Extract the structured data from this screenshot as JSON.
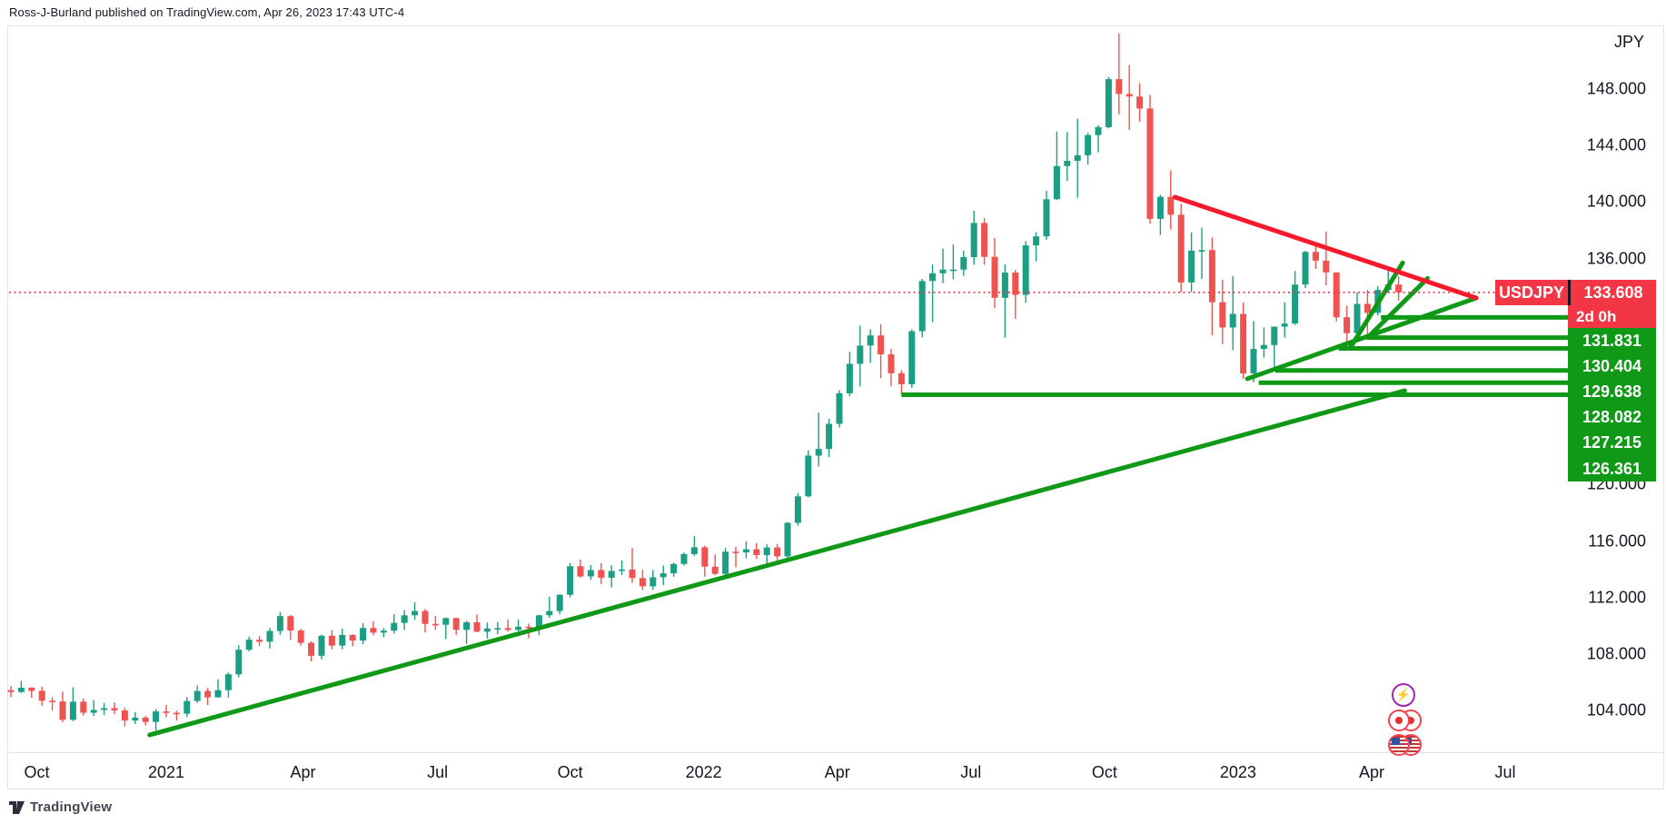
{
  "attribution": "Ross-J-Burland published on TradingView.com, Apr 26, 2023 17:43 UTC-4",
  "footer": {
    "logo_text": "TradingView"
  },
  "ticker": {
    "symbol": "USDJPY",
    "last_price": "133.608",
    "countdown": "2d 0h"
  },
  "colors": {
    "candle_up": "#1b9e83",
    "candle_down": "#ef5350",
    "line_green": "#0f9917",
    "line_red": "#f5192c",
    "badge_red": "#f23645",
    "badge_green": "#0f9917",
    "dotted_price_line": "#f23645",
    "axis_text": "#131722"
  },
  "price_axis": {
    "title": "JPY",
    "ticks": [
      {
        "label": "148.000",
        "price": 148
      },
      {
        "label": "144.000",
        "price": 144
      },
      {
        "label": "140.000",
        "price": 140
      },
      {
        "label": "136.000",
        "price": 136
      },
      {
        "label": "120.000",
        "price": 120
      },
      {
        "label": "116.000",
        "price": 116
      },
      {
        "label": "112.000",
        "price": 112
      },
      {
        "label": "108.000",
        "price": 108
      },
      {
        "label": "104.000",
        "price": 104
      }
    ]
  },
  "time_axis": {
    "ticks": [
      {
        "label": "Oct",
        "index": 2.5
      },
      {
        "label": "2021",
        "index": 15.0
      },
      {
        "label": "Apr",
        "index": 28.2
      },
      {
        "label": "Jul",
        "index": 41.2
      },
      {
        "label": "Oct",
        "index": 54.0
      },
      {
        "label": "2022",
        "index": 66.9
      },
      {
        "label": "Apr",
        "index": 79.8
      },
      {
        "label": "Jul",
        "index": 92.7
      },
      {
        "label": "Oct",
        "index": 105.6
      },
      {
        "label": "2023",
        "index": 118.5
      },
      {
        "label": "Apr",
        "index": 131.4
      },
      {
        "label": "Jul",
        "index": 144.3
      }
    ]
  },
  "levels": [
    {
      "label": "131.831",
      "price": 131.831,
      "start_index": 132.3
    },
    {
      "label": "130.404",
      "price": 130.404,
      "start_index": 131.0
    },
    {
      "label": "129.638",
      "price": 129.638,
      "start_index": 128.2
    },
    {
      "label": "128.082",
      "price": 128.082,
      "start_index": 122.1
    },
    {
      "label": "127.215",
      "price": 127.215,
      "start_index": 120.5
    },
    {
      "label": "126.361",
      "price": 126.361,
      "start_index": 86.0
    }
  ],
  "trendlines": [
    {
      "name": "long-term-uptrend",
      "color": "green",
      "i1": 13.4,
      "p1": 102.28,
      "i2": 134.6,
      "p2": 126.65
    },
    {
      "name": "pennant-support",
      "color": "green",
      "i1": 119.4,
      "p1": 127.49,
      "i2": 141.5,
      "p2": 133.21
    },
    {
      "name": "wedge-support-steep",
      "color": "green",
      "i1": 129.3,
      "p1": 129.64,
      "i2": 134.4,
      "p2": 135.7
    },
    {
      "name": "wedge-inner-steep",
      "color": "green",
      "i1": 131.0,
      "p1": 130.4,
      "i2": 136.8,
      "p2": 134.6
    },
    {
      "name": "pennant-resistance",
      "color": "red",
      "i1": 112.4,
      "p1": 140.35,
      "i2": 141.5,
      "p2": 133.21
    }
  ],
  "chart_data": {
    "type": "candlestick",
    "symbol": "USDJPY",
    "timeframe": "1W",
    "current_price": 133.608,
    "axis": {
      "price_min_visible": 102,
      "price_max_visible": 152
    },
    "weeks": [
      [
        "2020-09-28",
        105.45,
        105.75,
        104.95,
        105.32
      ],
      [
        "2020-10-05",
        105.32,
        106.1,
        105.25,
        105.62
      ],
      [
        "2020-10-12",
        105.62,
        105.65,
        104.9,
        105.4
      ],
      [
        "2020-10-19",
        105.4,
        105.7,
        104.35,
        104.7
      ],
      [
        "2020-10-26",
        104.7,
        104.95,
        104.0,
        104.65
      ],
      [
        "2020-11-02",
        104.65,
        105.35,
        103.18,
        103.35
      ],
      [
        "2020-11-09",
        103.35,
        105.65,
        103.25,
        104.63
      ],
      [
        "2020-11-16",
        104.63,
        104.85,
        103.65,
        103.85
      ],
      [
        "2020-11-23",
        103.85,
        104.75,
        103.62,
        104.05
      ],
      [
        "2020-11-30",
        104.05,
        104.55,
        103.68,
        104.17
      ],
      [
        "2020-12-07",
        104.17,
        104.58,
        103.75,
        104.02
      ],
      [
        "2020-12-14",
        104.02,
        104.2,
        102.88,
        103.3
      ],
      [
        "2020-12-21",
        103.3,
        103.9,
        103.05,
        103.5
      ],
      [
        "2020-12-28",
        103.5,
        103.62,
        102.95,
        103.2
      ],
      [
        "2021-01-04",
        103.2,
        104.1,
        102.59,
        103.94
      ],
      [
        "2021-01-11",
        103.94,
        104.4,
        103.52,
        103.85
      ],
      [
        "2021-01-18",
        103.85,
        104.0,
        103.3,
        103.78
      ],
      [
        "2021-01-25",
        103.78,
        104.95,
        103.55,
        104.68
      ],
      [
        "2021-02-01",
        104.68,
        105.77,
        104.55,
        105.39
      ],
      [
        "2021-02-08",
        105.39,
        105.6,
        104.4,
        104.94
      ],
      [
        "2021-02-15",
        104.94,
        106.22,
        104.92,
        105.45
      ],
      [
        "2021-02-22",
        105.45,
        106.7,
        104.92,
        106.57
      ],
      [
        "2021-03-01",
        106.57,
        108.63,
        106.36,
        108.31
      ],
      [
        "2021-03-08",
        108.31,
        109.23,
        108.2,
        109.02
      ],
      [
        "2021-03-15",
        109.02,
        109.29,
        108.58,
        108.88
      ],
      [
        "2021-03-22",
        108.88,
        109.85,
        108.4,
        109.64
      ],
      [
        "2021-03-29",
        109.64,
        110.97,
        109.36,
        110.69
      ],
      [
        "2021-04-05",
        110.69,
        110.77,
        109.0,
        109.67
      ],
      [
        "2021-04-12",
        109.67,
        109.8,
        108.6,
        108.8
      ],
      [
        "2021-04-19",
        108.8,
        108.9,
        107.48,
        107.88
      ],
      [
        "2021-04-26",
        107.88,
        109.39,
        107.64,
        109.3
      ],
      [
        "2021-05-03",
        109.3,
        109.7,
        108.34,
        108.6
      ],
      [
        "2021-05-10",
        108.6,
        109.79,
        108.35,
        109.35
      ],
      [
        "2021-05-17",
        109.35,
        109.4,
        108.56,
        108.96
      ],
      [
        "2021-05-24",
        108.96,
        110.2,
        108.7,
        109.85
      ],
      [
        "2021-05-31",
        109.85,
        110.33,
        109.33,
        109.52
      ],
      [
        "2021-06-07",
        109.52,
        109.84,
        109.19,
        109.66
      ],
      [
        "2021-06-14",
        109.66,
        110.82,
        109.45,
        110.21
      ],
      [
        "2021-06-21",
        110.21,
        111.11,
        109.72,
        110.75
      ],
      [
        "2021-06-28",
        110.75,
        111.66,
        110.42,
        111.05
      ],
      [
        "2021-07-05",
        111.05,
        111.19,
        109.53,
        110.14
      ],
      [
        "2021-07-12",
        110.14,
        110.7,
        109.72,
        110.08
      ],
      [
        "2021-07-19",
        110.08,
        110.59,
        109.07,
        110.55
      ],
      [
        "2021-07-26",
        110.55,
        110.58,
        109.36,
        109.72
      ],
      [
        "2021-08-02",
        109.72,
        110.36,
        108.72,
        110.25
      ],
      [
        "2021-08-09",
        110.25,
        110.8,
        109.54,
        109.59
      ],
      [
        "2021-08-16",
        109.59,
        110.23,
        109.11,
        109.81
      ],
      [
        "2021-08-23",
        109.81,
        110.26,
        109.41,
        109.84
      ],
      [
        "2021-08-30",
        109.84,
        110.44,
        109.59,
        109.71
      ],
      [
        "2021-09-06",
        109.71,
        110.45,
        109.62,
        109.94
      ],
      [
        "2021-09-13",
        109.94,
        110.15,
        109.11,
        109.93
      ],
      [
        "2021-09-20",
        109.93,
        110.79,
        109.33,
        110.75
      ],
      [
        "2021-09-27",
        110.75,
        112.07,
        110.56,
        111.05
      ],
      [
        "2021-10-04",
        111.05,
        112.24,
        110.82,
        112.2
      ],
      [
        "2021-10-11",
        112.2,
        114.46,
        112.02,
        114.22
      ],
      [
        "2021-10-18",
        114.22,
        114.69,
        113.4,
        113.5
      ],
      [
        "2021-10-25",
        113.5,
        114.3,
        113.26,
        113.95
      ],
      [
        "2021-11-01",
        113.95,
        114.44,
        112.96,
        113.41
      ],
      [
        "2021-11-08",
        113.41,
        114.29,
        112.73,
        113.89
      ],
      [
        "2021-11-15",
        113.89,
        114.63,
        113.6,
        113.99
      ],
      [
        "2021-11-22",
        113.99,
        115.52,
        113.05,
        113.38
      ],
      [
        "2021-11-29",
        113.38,
        113.96,
        112.53,
        112.8
      ],
      [
        "2021-12-06",
        112.8,
        113.95,
        112.56,
        113.44
      ],
      [
        "2021-12-13",
        113.44,
        114.27,
        112.87,
        113.72
      ],
      [
        "2021-12-20",
        113.72,
        114.47,
        113.47,
        114.38
      ],
      [
        "2021-12-27",
        114.38,
        115.2,
        114.27,
        115.08
      ],
      [
        "2022-01-03",
        115.08,
        116.35,
        114.95,
        115.56
      ],
      [
        "2022-01-10",
        115.56,
        115.68,
        113.48,
        114.19
      ],
      [
        "2022-01-17",
        114.19,
        115.06,
        113.59,
        113.68
      ],
      [
        "2022-01-24",
        113.68,
        115.52,
        113.46,
        115.25
      ],
      [
        "2022-01-31",
        115.25,
        115.6,
        114.15,
        115.2
      ],
      [
        "2022-02-07",
        115.2,
        116.0,
        114.78,
        115.42
      ],
      [
        "2022-02-14",
        115.42,
        115.86,
        114.74,
        115.01
      ],
      [
        "2022-02-21",
        115.01,
        115.77,
        114.4,
        115.55
      ],
      [
        "2022-02-28",
        115.55,
        115.8,
        114.64,
        114.92
      ],
      [
        "2022-03-07",
        114.92,
        117.36,
        114.81,
        117.29
      ],
      [
        "2022-03-14",
        117.29,
        119.4,
        117.1,
        119.17
      ],
      [
        "2022-03-21",
        119.17,
        122.43,
        119.1,
        122.05
      ],
      [
        "2022-03-28",
        122.05,
        125.1,
        121.28,
        122.52
      ],
      [
        "2022-04-04",
        122.52,
        124.67,
        121.95,
        124.3
      ],
      [
        "2022-04-11",
        124.3,
        126.68,
        124.05,
        126.46
      ],
      [
        "2022-04-18",
        126.46,
        129.4,
        126.25,
        128.55
      ],
      [
        "2022-04-25",
        128.55,
        131.25,
        126.95,
        129.84
      ],
      [
        "2022-05-02",
        129.84,
        130.99,
        128.62,
        130.56
      ],
      [
        "2022-05-09",
        130.56,
        131.35,
        127.52,
        129.22
      ],
      [
        "2022-05-16",
        129.22,
        129.62,
        126.95,
        127.88
      ],
      [
        "2022-05-23",
        127.88,
        128.1,
        126.36,
        127.1
      ],
      [
        "2022-05-30",
        127.1,
        130.98,
        126.85,
        130.86
      ],
      [
        "2022-06-06",
        130.86,
        134.56,
        130.42,
        134.41
      ],
      [
        "2022-06-13",
        134.41,
        135.58,
        131.49,
        134.96
      ],
      [
        "2022-06-20",
        134.96,
        136.71,
        134.26,
        135.22
      ],
      [
        "2022-06-27",
        135.22,
        137.0,
        134.53,
        135.22
      ],
      [
        "2022-07-04",
        135.22,
        136.56,
        134.78,
        136.1
      ],
      [
        "2022-07-11",
        136.1,
        139.38,
        135.57,
        138.52
      ],
      [
        "2022-07-18",
        138.52,
        138.88,
        135.56,
        136.12
      ],
      [
        "2022-07-25",
        136.12,
        137.46,
        132.49,
        133.22
      ],
      [
        "2022-08-01",
        133.22,
        135.58,
        130.4,
        135.01
      ],
      [
        "2022-08-08",
        135.01,
        135.2,
        131.73,
        133.43
      ],
      [
        "2022-08-15",
        133.43,
        137.23,
        132.88,
        136.93
      ],
      [
        "2022-08-22",
        136.93,
        137.87,
        135.8,
        137.57
      ],
      [
        "2022-08-29",
        137.57,
        140.8,
        137.33,
        140.2
      ],
      [
        "2022-09-05",
        140.2,
        144.99,
        140.15,
        142.55
      ],
      [
        "2022-09-12",
        142.55,
        144.96,
        141.5,
        142.92
      ],
      [
        "2022-09-19",
        142.92,
        145.9,
        140.31,
        143.31
      ],
      [
        "2022-09-26",
        143.31,
        144.9,
        142.65,
        144.74
      ],
      [
        "2022-10-03",
        144.74,
        145.44,
        143.52,
        145.3
      ],
      [
        "2022-10-10",
        145.3,
        148.86,
        145.22,
        148.7
      ],
      [
        "2022-10-17",
        148.7,
        151.94,
        146.2,
        147.65
      ],
      [
        "2022-10-24",
        147.65,
        149.7,
        145.1,
        147.47
      ],
      [
        "2022-10-31",
        147.47,
        148.42,
        145.67,
        146.62
      ],
      [
        "2022-11-07",
        146.62,
        147.57,
        138.46,
        138.81
      ],
      [
        "2022-11-14",
        138.81,
        140.52,
        137.67,
        140.37
      ],
      [
        "2022-11-21",
        140.37,
        142.25,
        138.05,
        139.1
      ],
      [
        "2022-11-28",
        139.1,
        139.89,
        133.62,
        134.31
      ],
      [
        "2022-12-05",
        134.31,
        137.86,
        133.62,
        136.56
      ],
      [
        "2022-12-12",
        136.56,
        138.18,
        134.55,
        136.6
      ],
      [
        "2022-12-19",
        136.6,
        137.48,
        130.57,
        132.91
      ],
      [
        "2022-12-26",
        132.91,
        134.5,
        129.95,
        131.12
      ],
      [
        "2023-01-02",
        131.12,
        134.77,
        129.51,
        132.08
      ],
      [
        "2023-01-09",
        132.08,
        132.9,
        127.46,
        127.87
      ],
      [
        "2023-01-16",
        127.87,
        131.58,
        127.22,
        129.6
      ],
      [
        "2023-01-23",
        129.6,
        131.12,
        128.98,
        129.88
      ],
      [
        "2023-01-30",
        129.88,
        131.19,
        128.08,
        131.18
      ],
      [
        "2023-02-06",
        131.18,
        132.9,
        130.41,
        131.4
      ],
      [
        "2023-02-13",
        131.4,
        135.12,
        131.3,
        134.16
      ],
      [
        "2023-02-20",
        134.16,
        136.55,
        133.91,
        136.47
      ],
      [
        "2023-02-27",
        136.47,
        137.1,
        135.26,
        135.85
      ],
      [
        "2023-03-06",
        135.85,
        137.91,
        134.11,
        135.02
      ],
      [
        "2023-03-13",
        135.02,
        135.03,
        131.55,
        131.85
      ],
      [
        "2023-03-20",
        131.85,
        132.65,
        129.64,
        130.72
      ],
      [
        "2023-03-27",
        130.72,
        133.59,
        130.41,
        132.79
      ],
      [
        "2023-04-03",
        132.79,
        133.77,
        130.62,
        132.16
      ],
      [
        "2023-04-10",
        132.16,
        134.04,
        131.98,
        133.78
      ],
      [
        "2023-04-17",
        133.78,
        135.13,
        133.54,
        134.16
      ],
      [
        "2023-04-24",
        134.16,
        134.75,
        133.01,
        133.61
      ]
    ]
  }
}
